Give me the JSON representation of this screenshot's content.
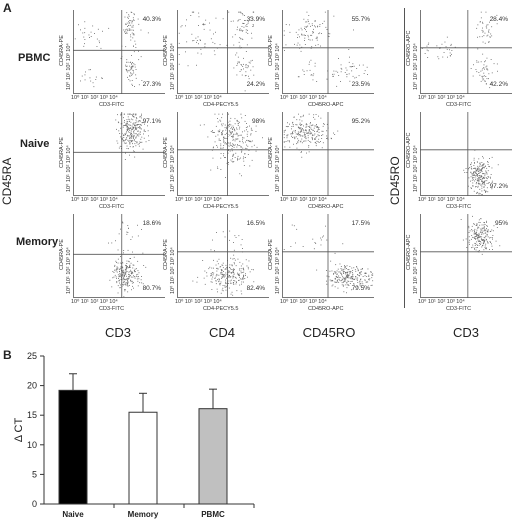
{
  "panel_a": {
    "letter": "A",
    "rows": [
      {
        "label": "PBMC",
        "plots": [
          {
            "ylabel": "CD45RA-PE",
            "xlabel": "CD3-FITC",
            "q_ur": "40.3%",
            "q_lr": "27.3%"
          },
          {
            "ylabel": "CD45RA-PE",
            "xlabel": "CD4-PECY5.5",
            "q_ur": "33.9%",
            "q_lr": "24.2%"
          },
          {
            "ylabel": "CD45RA-PE",
            "xlabel": "CD45RO-APC",
            "q_ur": "55.7%",
            "q_lr": "23.5%"
          },
          {
            "ylabel": "CD45RO-APC",
            "xlabel": "CD3-FITC",
            "q_ur": "28.4%",
            "q_lr": "42.2%"
          }
        ]
      },
      {
        "label": "Naive",
        "plots": [
          {
            "ylabel": "CD45RA-PE",
            "xlabel": "CD3-FITC",
            "q_ur": "97.1%",
            "q_lr": ""
          },
          {
            "ylabel": "CD45RA-PE",
            "xlabel": "CD4-PECY5.5",
            "q_ur": "98%",
            "q_lr": ""
          },
          {
            "ylabel": "CD45RA-PE",
            "xlabel": "CD45RO-APC",
            "q_ur": "95.2%",
            "q_lr": ""
          },
          {
            "ylabel": "CD45RO-APC",
            "xlabel": "CD3-FITC",
            "q_ur": "",
            "q_lr": "97.2%"
          }
        ]
      },
      {
        "label": "Memory",
        "plots": [
          {
            "ylabel": "CD45RA-PE",
            "xlabel": "CD3-FITC",
            "q_ur": "18.6%",
            "q_lr": "80.7%"
          },
          {
            "ylabel": "CD45RA-PE",
            "xlabel": "CD4-PECY5.5",
            "q_ur": "16.5%",
            "q_lr": "82.4%"
          },
          {
            "ylabel": "CD45RA-PE",
            "xlabel": "CD45RO-APC",
            "q_ur": "17.5%",
            "q_lr": "79.5%"
          },
          {
            "ylabel": "CD45RO-APC",
            "xlabel": "CD3-FITC",
            "q_ur": "95%",
            "q_lr": ""
          }
        ]
      }
    ],
    "left_axis_label": "CD45RA",
    "right_axis_label": "CD45RO",
    "column_labels": [
      "CD3",
      "CD4",
      "CD45RO",
      "CD3"
    ]
  },
  "panel_b": {
    "letter": "B"
  },
  "chart_data": {
    "type": "bar",
    "categories": [
      "Naive",
      "Memory",
      "PBMC"
    ],
    "values": [
      19.2,
      15.5,
      16.1
    ],
    "errors": [
      2.8,
      3.2,
      3.3
    ],
    "colors": [
      "#000000",
      "#ffffff",
      "#c0c0c0"
    ],
    "ylabel": "Δ CT",
    "ylim": [
      0,
      25
    ],
    "yticks": [
      0,
      5,
      10,
      15,
      20,
      25
    ],
    "grid": false
  }
}
